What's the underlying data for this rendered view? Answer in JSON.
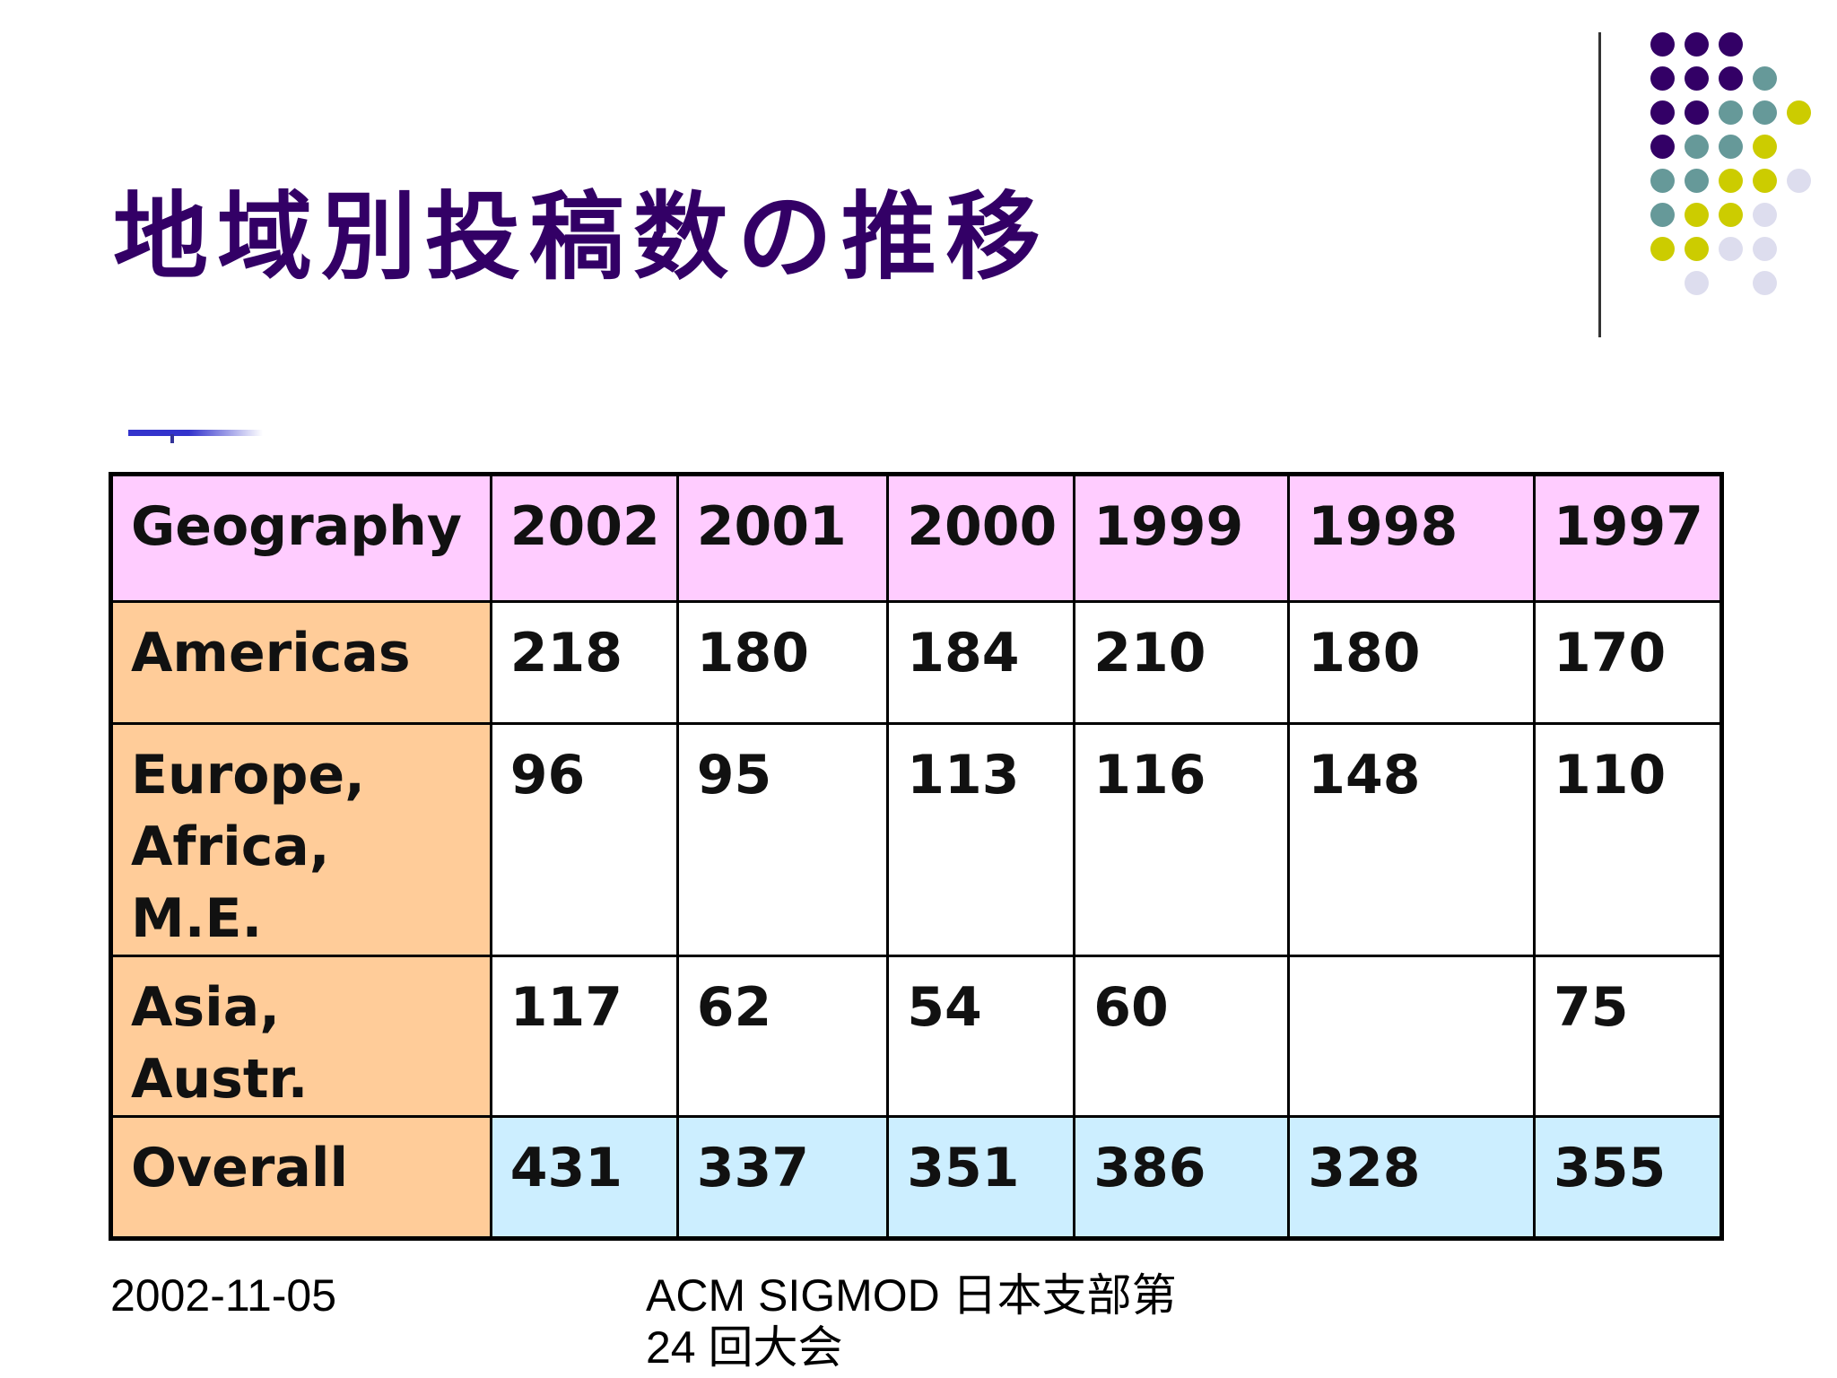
{
  "slide": {
    "title": "地域別投稿数の推移"
  },
  "colors": {
    "title": "#330066",
    "header_fill": "#ffccff",
    "row_header_fill": "#ffcc99",
    "total_fill": "#cceeff",
    "accent_line": "#3333cc",
    "dot_purple": "#330066",
    "dot_teal": "#669999",
    "dot_yellow": "#cccc00",
    "dot_lavender": "#ddddee"
  },
  "table": {
    "header": [
      "Geography",
      "2002",
      "2001",
      "2000",
      "1999",
      "1998",
      "1997"
    ],
    "rows": [
      {
        "label": "Americas",
        "values": [
          "218",
          "180",
          "184",
          "210",
          "180",
          "170"
        ]
      },
      {
        "label": "Europe, Africa, M.E.",
        "values": [
          "96",
          "95",
          "113",
          "116",
          "148",
          "110"
        ]
      },
      {
        "label": "Asia, Austr.",
        "values": [
          "117",
          "62",
          "54",
          "60",
          "",
          "75"
        ]
      },
      {
        "label": "Overall",
        "values": [
          "431",
          "337",
          "351",
          "386",
          "328",
          "355"
        ]
      }
    ]
  },
  "footer": {
    "date": "2002-11-05",
    "event_line1": "ACM SIGMOD 日本支部第",
    "event_line2": "24 回大会"
  }
}
